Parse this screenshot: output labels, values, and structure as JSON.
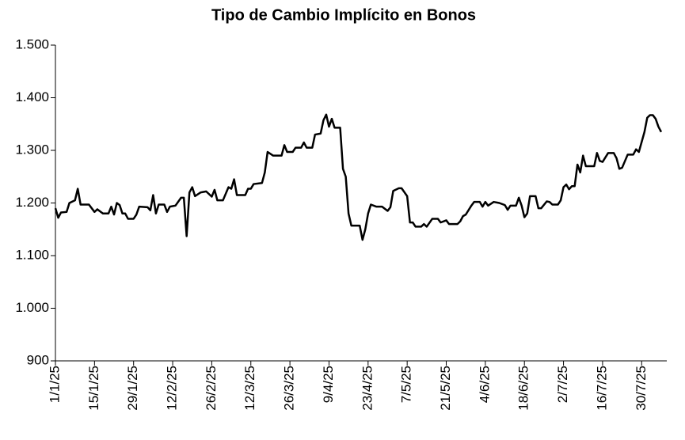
{
  "chart_data": {
    "type": "line",
    "title": "Tipo de Cambio Implícito en Bonos",
    "series": [
      {
        "color": "#000000",
        "x": [
          "1/1/25",
          "2/1/25",
          "3/1/25",
          "5/1/25",
          "6/1/25",
          "8/1/25",
          "9/1/25",
          "10/1/25",
          "13/1/25",
          "15/1/25",
          "16/1/25",
          "18/1/25",
          "20/1/25",
          "21/1/25",
          "22/1/25",
          "23/1/25",
          "24/1/25",
          "25/1/25",
          "26/1/25",
          "27/1/25",
          "29/1/25",
          "30/1/25",
          "31/1/25",
          "3/2/25",
          "4/2/25",
          "5/2/25",
          "6/2/25",
          "7/2/25",
          "9/2/25",
          "10/2/25",
          "11/2/25",
          "13/2/25",
          "15/2/25",
          "16/2/25",
          "17/2/25",
          "18/2/25",
          "19/2/25",
          "20/2/25",
          "22/2/25",
          "24/2/25",
          "26/2/25",
          "27/2/25",
          "28/2/25",
          "2/3/25",
          "4/3/25",
          "5/3/25",
          "6/3/25",
          "7/3/25",
          "10/3/25",
          "11/3/25",
          "12/3/25",
          "13/3/25",
          "16/3/25",
          "17/3/25",
          "18/3/25",
          "20/3/25",
          "23/3/25",
          "24/3/25",
          "25/3/25",
          "27/3/25",
          "28/3/25",
          "30/3/25",
          "31/3/25",
          "1/4/25",
          "3/4/25",
          "4/4/25",
          "6/4/25",
          "7/4/25",
          "8/4/25",
          "9/4/25",
          "10/4/25",
          "11/4/25",
          "13/4/25",
          "14/4/25",
          "15/4/25",
          "16/4/25",
          "17/4/25",
          "20/4/25",
          "21/4/25",
          "22/4/25",
          "23/4/25",
          "24/4/25",
          "26/4/25",
          "28/4/25",
          "30/4/25",
          "1/5/25",
          "2/5/25",
          "4/5/25",
          "5/5/25",
          "7/5/25",
          "8/5/25",
          "9/5/25",
          "10/5/25",
          "12/5/25",
          "13/5/25",
          "14/5/25",
          "16/5/25",
          "18/5/25",
          "19/5/25",
          "21/5/25",
          "22/5/25",
          "25/5/25",
          "26/5/25",
          "27/5/25",
          "28/5/25",
          "30/5/25",
          "31/5/25",
          "2/6/25",
          "3/6/25",
          "4/6/25",
          "5/6/25",
          "7/6/25",
          "9/6/25",
          "11/6/25",
          "12/6/25",
          "13/6/25",
          "15/6/25",
          "16/6/25",
          "17/6/25",
          "18/6/25",
          "19/6/25",
          "20/6/25",
          "22/6/25",
          "23/6/25",
          "24/6/25",
          "26/6/25",
          "27/6/25",
          "28/6/25",
          "30/6/25",
          "1/7/25",
          "2/7/25",
          "3/7/25",
          "4/7/25",
          "5/7/25",
          "6/7/25",
          "7/7/25",
          "8/7/25",
          "9/7/25",
          "10/7/25",
          "13/7/25",
          "14/7/25",
          "15/7/25",
          "16/7/25",
          "18/7/25",
          "20/7/25",
          "21/7/25",
          "22/7/25",
          "23/7/25",
          "25/7/25",
          "27/7/25",
          "28/7/25",
          "29/7/25",
          "31/7/25",
          "1/8/25",
          "2/8/25",
          "3/8/25",
          "4/8/25",
          "5/8/25",
          "6/8/25"
        ],
        "values": [
          1190,
          1172,
          1182,
          1183,
          1200,
          1205,
          1227,
          1197,
          1197,
          1183,
          1188,
          1180,
          1180,
          1193,
          1178,
          1200,
          1196,
          1180,
          1180,
          1170,
          1170,
          1178,
          1193,
          1192,
          1186,
          1215,
          1180,
          1197,
          1197,
          1183,
          1193,
          1195,
          1210,
          1210,
          1137,
          1220,
          1230,
          1213,
          1220,
          1222,
          1212,
          1225,
          1205,
          1205,
          1230,
          1227,
          1245,
          1215,
          1215,
          1227,
          1227,
          1236,
          1238,
          1258,
          1297,
          1290,
          1290,
          1310,
          1297,
          1297,
          1305,
          1305,
          1315,
          1305,
          1305,
          1330,
          1332,
          1357,
          1368,
          1345,
          1360,
          1343,
          1343,
          1265,
          1250,
          1180,
          1157,
          1157,
          1130,
          1150,
          1180,
          1197,
          1193,
          1193,
          1185,
          1192,
          1223,
          1228,
          1228,
          1213,
          1163,
          1163,
          1155,
          1155,
          1160,
          1155,
          1170,
          1170,
          1163,
          1167,
          1160,
          1160,
          1165,
          1175,
          1178,
          1195,
          1202,
          1202,
          1193,
          1202,
          1195,
          1202,
          1200,
          1196,
          1187,
          1195,
          1195,
          1210,
          1195,
          1173,
          1180,
          1213,
          1213,
          1190,
          1190,
          1203,
          1202,
          1197,
          1197,
          1205,
          1230,
          1235,
          1226,
          1232,
          1232,
          1273,
          1258,
          1290,
          1270,
          1270,
          1295,
          1280,
          1278,
          1295,
          1295,
          1285,
          1265,
          1267,
          1292,
          1292,
          1302,
          1297,
          1335,
          1362,
          1367,
          1367,
          1360,
          1345,
          1335
        ]
      }
    ],
    "xlim": [
      "1/1/25",
      "8/8/25"
    ],
    "xticks": [
      "1/1/25",
      "15/1/25",
      "29/1/25",
      "12/2/25",
      "26/2/25",
      "12/3/25",
      "26/3/25",
      "9/4/25",
      "23/4/25",
      "7/5/25",
      "21/5/25",
      "4/6/25",
      "18/6/25",
      "2/7/25",
      "16/7/25",
      "30/7/25"
    ],
    "ylim": [
      900,
      1500
    ],
    "yticks": [
      900,
      {
        "value": 1000,
        "label": "1.000"
      },
      {
        "value": 1100,
        "label": "1.100"
      },
      {
        "value": 1200,
        "label": "1.200"
      },
      {
        "value": 1300,
        "label": "1.300"
      },
      {
        "value": 1400,
        "label": "1.400"
      },
      {
        "value": 1500,
        "label": "1.500"
      }
    ],
    "grid": false
  }
}
